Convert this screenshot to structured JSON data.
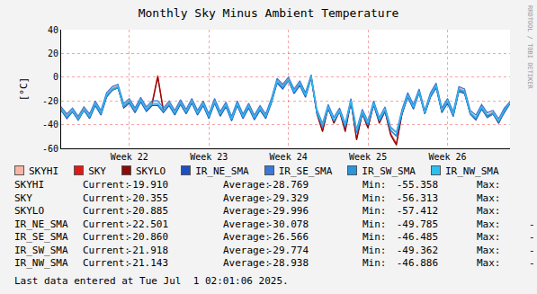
{
  "chart_data": {
    "type": "line",
    "title": "Monthly Sky Minus Ambient Temperature",
    "y_label": "[°C]",
    "categories": [
      null,
      null,
      null,
      null,
      null,
      null,
      null,
      null,
      null,
      null,
      null,
      null,
      "Week 22",
      null,
      null,
      null,
      null,
      null,
      null,
      null,
      null,
      null,
      null,
      null,
      null,
      null,
      "Week 23",
      null,
      null,
      null,
      null,
      null,
      null,
      null,
      null,
      null,
      null,
      null,
      null,
      null,
      "Week 24",
      null,
      null,
      null,
      null,
      null,
      null,
      null,
      null,
      null,
      null,
      null,
      null,
      null,
      "Week 25",
      null,
      null,
      null,
      null,
      null,
      null,
      null,
      null,
      null,
      null,
      null,
      null,
      null,
      "Week 26",
      null,
      null,
      null,
      null,
      null,
      null,
      null,
      null,
      null,
      null,
      null
    ],
    "ylim": [
      -60,
      40
    ],
    "yticks": [
      -60,
      -40,
      -20,
      0,
      20,
      40
    ],
    "grid": true,
    "series": [
      {
        "name": "SKYHI",
        "color": "#f7b5a5",
        "values": [
          -26,
          -32,
          -27,
          -34,
          -26,
          -32,
          -21,
          -29,
          -14,
          -9,
          -7,
          -23,
          -19,
          -27,
          -18,
          -26,
          -21,
          2,
          -27,
          -21,
          -29,
          -20,
          -28,
          -19,
          -29,
          -21,
          -32,
          -19,
          -30,
          -22,
          -34,
          -21,
          -32,
          -23,
          -33,
          -25,
          -32,
          -19,
          -2,
          -7,
          -1,
          -11,
          -4,
          -14,
          2,
          -29,
          -44,
          -24,
          -37,
          -27,
          -44,
          -19,
          -51,
          -29,
          -41,
          -21,
          -37,
          -27,
          -47,
          -55.4,
          -29,
          -14,
          -24,
          -11,
          -29,
          -14,
          -6,
          -27,
          -19,
          -31,
          -9,
          -11,
          -29,
          -34,
          -24,
          -32,
          -29,
          -37,
          -27,
          -19.9
        ]
      },
      {
        "name": "SKY",
        "color": "#e01818",
        "values": [
          -27,
          -33,
          -28,
          -35,
          -27,
          -33,
          -22,
          -30,
          -15,
          -10,
          -8,
          -24,
          -20,
          -28,
          -19,
          -27,
          -22,
          1,
          -28,
          -22,
          -30,
          -21,
          -29,
          -20,
          -30,
          -22,
          -33,
          -20,
          -31,
          -23,
          -35,
          -22,
          -33,
          -24,
          -34,
          -26,
          -33,
          -20,
          -3,
          -8,
          -2,
          -12,
          -5,
          -15,
          1,
          -30,
          -45,
          -25,
          -38,
          -28,
          -45,
          -20,
          -52,
          -30,
          -42,
          -22,
          -38,
          -28,
          -48,
          -56.3,
          -30,
          -15,
          -25,
          -12,
          -30,
          -15,
          -7,
          -28,
          -20,
          -32,
          -10,
          -12,
          -30,
          -35,
          -25,
          -33,
          -30,
          -38,
          -28,
          -20.4
        ]
      },
      {
        "name": "SKYLO",
        "color": "#8b0a0a",
        "values": [
          -28,
          -34,
          -29,
          -36,
          -28,
          -34,
          -23,
          -31,
          -16,
          -11,
          -9,
          -25,
          -21,
          -29,
          -20,
          -28,
          -23,
          0,
          -29,
          -23,
          -31,
          -22,
          -30,
          -21,
          -31,
          -23,
          -34,
          -21,
          -32,
          -24,
          -36,
          -23,
          -34,
          -25,
          -35,
          -27,
          -34,
          -21,
          -4,
          -9,
          -3,
          -13,
          -6,
          -16,
          0,
          -31,
          -46,
          -26,
          -39,
          -29,
          -46,
          -21,
          -53,
          -31,
          -43,
          -23,
          -39,
          -29,
          -49,
          -57.4,
          -31,
          -16,
          -26,
          -13,
          -31,
          -16,
          -8,
          -29,
          -21,
          -33,
          -11,
          -13,
          -31,
          -36,
          -26,
          -34,
          -31,
          -39,
          -29,
          -20.9
        ]
      },
      {
        "name": "IR_NE_SMA",
        "color": "#1f4fbf",
        "values": [
          -28,
          -35,
          -29,
          -36,
          -28,
          -35,
          -24,
          -32,
          -17,
          -11,
          -9,
          -26,
          -22,
          -30,
          -21,
          -29,
          -24,
          -24,
          -30,
          -24,
          -32,
          -23,
          -31,
          -22,
          -32,
          -24,
          -35,
          -22,
          -33,
          -25,
          -37,
          -24,
          -35,
          -26,
          -36,
          -28,
          -35,
          -22,
          -5,
          -10,
          -3,
          -14,
          -7,
          -17,
          -1,
          -30,
          -42,
          -27,
          -37,
          -29,
          -42,
          -22,
          -47,
          -31,
          -40,
          -24,
          -37,
          -29,
          -45,
          -49.8,
          -31,
          -17,
          -27,
          -13,
          -31,
          -17,
          -9,
          -30,
          -22,
          -33,
          -12,
          -14,
          -31,
          -36,
          -27,
          -34,
          -31,
          -38,
          -30,
          -22.5
        ]
      },
      {
        "name": "IR_SE_SMA",
        "color": "#3a78d8",
        "values": [
          -25,
          -31,
          -26,
          -33,
          -25,
          -31,
          -20,
          -28,
          -13,
          -8,
          -6,
          -22,
          -18,
          -26,
          -17,
          -25,
          -20,
          -20,
          -26,
          -20,
          -28,
          -19,
          -27,
          -18,
          -28,
          -20,
          -31,
          -18,
          -29,
          -21,
          -33,
          -20,
          -31,
          -22,
          -32,
          -24,
          -31,
          -18,
          -1,
          -6,
          0,
          -10,
          -3,
          -13,
          2,
          -27,
          -39,
          -23,
          -34,
          -26,
          -39,
          -18,
          -44,
          -27,
          -37,
          -20,
          -34,
          -25,
          -42,
          -46.5,
          -27,
          -13,
          -23,
          -10,
          -28,
          -13,
          -5,
          -26,
          -18,
          -29,
          -8,
          -10,
          -28,
          -32,
          -23,
          -30,
          -28,
          -35,
          -26,
          -20.9
        ]
      },
      {
        "name": "IR_SW_SMA",
        "color": "#2a95dc",
        "values": [
          -28,
          -34,
          -29,
          -36,
          -28,
          -34,
          -23,
          -31,
          -16,
          -11,
          -9,
          -25,
          -21,
          -29,
          -20,
          -28,
          -23,
          -23,
          -29,
          -23,
          -31,
          -22,
          -30,
          -21,
          -31,
          -23,
          -34,
          -21,
          -32,
          -24,
          -36,
          -23,
          -34,
          -25,
          -35,
          -27,
          -34,
          -21,
          -4,
          -9,
          -3,
          -13,
          -6,
          -16,
          0,
          -30,
          -42,
          -26,
          -37,
          -29,
          -42,
          -21,
          -47,
          -31,
          -40,
          -23,
          -37,
          -28,
          -45,
          -49.4,
          -30,
          -16,
          -26,
          -13,
          -31,
          -16,
          -8,
          -29,
          -21,
          -33,
          -11,
          -13,
          -31,
          -35,
          -26,
          -34,
          -31,
          -38,
          -29,
          -21.9
        ]
      },
      {
        "name": "IR_NW_SMA",
        "color": "#2cc0f0",
        "values": [
          -27,
          -33,
          -28,
          -35,
          -27,
          -33,
          -22,
          -30,
          -15,
          -10,
          -8,
          -24,
          -20,
          -28,
          -19,
          -27,
          -22,
          -22,
          -28,
          -22,
          -30,
          -21,
          -29,
          -20,
          -30,
          -22,
          -33,
          -20,
          -31,
          -23,
          -35,
          -22,
          -33,
          -24,
          -34,
          -26,
          -33,
          -20,
          -3,
          -8,
          -2,
          -12,
          -5,
          -15,
          1,
          -29,
          -40,
          -25,
          -36,
          -28,
          -40,
          -20,
          -45,
          -29,
          -38,
          -22,
          -35,
          -27,
          -43,
          -46.9,
          -29,
          -15,
          -25,
          -12,
          -30,
          -15,
          -7,
          -28,
          -20,
          -31,
          -10,
          -12,
          -30,
          -34,
          -25,
          -32,
          -30,
          -37,
          -28,
          -21.1
        ]
      }
    ]
  },
  "stats": {
    "columns": [
      "Current:",
      "Average:",
      "Min:",
      "Max:"
    ],
    "rows": [
      [
        "-19.910",
        "-28.769",
        "-55.358"
      ],
      [
        "-20.355",
        "-29.329",
        "-56.313"
      ],
      [
        "-20.885",
        "-29.996",
        "-57.412"
      ],
      [
        "-22.501",
        "-30.078",
        "-49.785",
        "-"
      ],
      [
        "-20.860",
        "-26.566",
        "-46.485",
        "-"
      ],
      [
        "-21.918",
        "-29.774",
        "-49.362",
        "-"
      ],
      [
        "-21.143",
        "-28.938",
        "-46.886",
        "-"
      ]
    ]
  },
  "footer": "Last data entered at Tue Jul  1 02:01:06 2025.",
  "watermark": "RRDTOOL / TOBI OETIKER"
}
